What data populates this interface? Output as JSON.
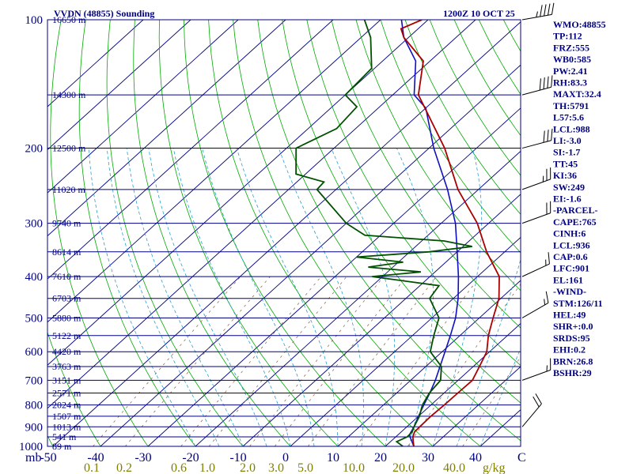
{
  "header": {
    "title": "VVDN (48855) Sounding",
    "time": "1200Z 10 OCT 25"
  },
  "colors": {
    "isobar": "#000080",
    "isotherm": "#000080",
    "dry_adiabat": "#00aa00",
    "moist_adiabat": "#2aa0d0",
    "mixing_ratio": "#806040",
    "temperature": "#aa0000",
    "dewpoint": "#005000",
    "parcel": "#1010c0",
    "text": "#000080",
    "mixing_label": "#808000"
  },
  "chart_data": {
    "type": "line",
    "title": "VVDN (48855) Sounding",
    "subtitle": "1200Z 10 OCT 25",
    "y_axis": {
      "label": "mb",
      "scale": "log",
      "range": [
        1000,
        100
      ],
      "ticks": [
        "100",
        "200",
        "300",
        "400",
        "500",
        "600",
        "700",
        "800",
        "900",
        "1000"
      ]
    },
    "x_axis": {
      "label": "C",
      "range": [
        -50,
        50
      ],
      "ticks": [
        "-50",
        "-40",
        "-30",
        "-20",
        "-10",
        "0",
        "10",
        "20",
        "30",
        "40"
      ]
    },
    "mixing_ratio_axis": {
      "label": "g/kg",
      "ticks": [
        "0.1",
        "0.2",
        "0.6",
        "1.0",
        "2.0",
        "3.0",
        "5.0",
        "10.0",
        "20.0",
        "40.0"
      ]
    },
    "height_labels": [
      {
        "p": 100,
        "label": "16650 m"
      },
      {
        "p": 150,
        "label": "14300 m"
      },
      {
        "p": 200,
        "label": "12500 m"
      },
      {
        "p": 250,
        "label": "11020 m"
      },
      {
        "p": 300,
        "label": "9740 m"
      },
      {
        "p": 350,
        "label": "8614 m"
      },
      {
        "p": 400,
        "label": "7610 m"
      },
      {
        "p": 450,
        "label": "6703 m"
      },
      {
        "p": 500,
        "label": "5880 m"
      },
      {
        "p": 550,
        "label": "5122 m"
      },
      {
        "p": 600,
        "label": "4420 m"
      },
      {
        "p": 650,
        "label": "3763 m"
      },
      {
        "p": 700,
        "label": "3151 m"
      },
      {
        "p": 750,
        "label": "2571 m"
      },
      {
        "p": 800,
        "label": "2024 m"
      },
      {
        "p": 850,
        "label": "1507 m"
      },
      {
        "p": 900,
        "label": "1013 m"
      },
      {
        "p": 950,
        "label": "541 m"
      },
      {
        "p": 1000,
        "label": "89 m"
      }
    ],
    "series": [
      {
        "key": "temperature",
        "points": [
          [
            1000,
            26.0
          ],
          [
            975,
            24.8
          ],
          [
            950,
            23.6
          ],
          [
            925,
            22.8
          ],
          [
            900,
            22.7
          ],
          [
            850,
            22.6
          ],
          [
            800,
            22.8
          ],
          [
            750,
            22.9
          ],
          [
            700,
            23.0
          ],
          [
            650,
            21.3
          ],
          [
            600,
            19.4
          ],
          [
            550,
            16.0
          ],
          [
            500,
            12.9
          ],
          [
            450,
            9.6
          ],
          [
            400,
            4.6
          ],
          [
            350,
            -3.8
          ],
          [
            300,
            -12.4
          ],
          [
            250,
            -24.3
          ],
          [
            200,
            -36.7
          ],
          [
            150,
            -54.6
          ],
          [
            125,
            -61.4
          ],
          [
            110,
            -71.0
          ],
          [
            105,
            -73.6
          ],
          [
            100,
            -71.3
          ]
        ]
      },
      {
        "key": "dewpoint",
        "points": [
          [
            1000,
            23.7
          ],
          [
            975,
            21.3
          ],
          [
            950,
            22.4
          ],
          [
            925,
            22.3
          ],
          [
            900,
            21.5
          ],
          [
            850,
            20.2
          ],
          [
            800,
            18.2
          ],
          [
            750,
            16.9
          ],
          [
            700,
            16.3
          ],
          [
            650,
            13.3
          ],
          [
            600,
            7.5
          ],
          [
            550,
            4.5
          ],
          [
            500,
            1.5
          ],
          [
            450,
            -5.0
          ],
          [
            420,
            -6.0
          ],
          [
            400,
            -22.2
          ],
          [
            390,
            -13.0
          ],
          [
            380,
            -25.2
          ],
          [
            370,
            -19.0
          ],
          [
            360,
            -30.0
          ],
          [
            350,
            -16.0
          ],
          [
            340,
            -8.1
          ],
          [
            330,
            -15.3
          ],
          [
            320,
            -33.3
          ],
          [
            300,
            -40.0
          ],
          [
            250,
            -54.0
          ],
          [
            240,
            -54.3
          ],
          [
            230,
            -62.0
          ],
          [
            200,
            -68.0
          ],
          [
            180,
            -64.0
          ],
          [
            160,
            -64.8
          ],
          [
            150,
            -70.0
          ],
          [
            130,
            -70.6
          ],
          [
            110,
            -78.0
          ],
          [
            100,
            -83.4
          ]
        ]
      },
      {
        "key": "parcel",
        "points": [
          [
            1000,
            26.0
          ],
          [
            950,
            23.0
          ],
          [
            936,
            22.3
          ],
          [
            900,
            21.5
          ],
          [
            850,
            20.0
          ],
          [
            800,
            18.5
          ],
          [
            750,
            17.0
          ],
          [
            700,
            15.2
          ],
          [
            650,
            13.0
          ],
          [
            600,
            10.6
          ],
          [
            550,
            8.0
          ],
          [
            500,
            5.0
          ],
          [
            450,
            1.0
          ],
          [
            400,
            -4.0
          ],
          [
            350,
            -10.0
          ],
          [
            300,
            -17.0
          ],
          [
            250,
            -26.5
          ],
          [
            200,
            -39.0
          ],
          [
            161,
            -50.0
          ],
          [
            150,
            -55.5
          ],
          [
            125,
            -63.0
          ],
          [
            110,
            -71.0
          ],
          [
            100,
            -75.6
          ]
        ]
      }
    ],
    "winds": [
      {
        "p": 100,
        "dir": 260,
        "spd": 45
      },
      {
        "p": 150,
        "dir": 255,
        "spd": 40
      },
      {
        "p": 200,
        "dir": 255,
        "spd": 30
      },
      {
        "p": 250,
        "dir": 250,
        "spd": 25
      },
      {
        "p": 300,
        "dir": 250,
        "spd": 20
      },
      {
        "p": 400,
        "dir": 245,
        "spd": 15
      },
      {
        "p": 500,
        "dir": 240,
        "spd": 15
      },
      {
        "p": 700,
        "dir": 250,
        "spd": 15
      },
      {
        "p": 900,
        "dir": 220,
        "spd": 20
      }
    ]
  },
  "indices": [
    "WMO:48855",
    "TP:112",
    "FRZ:555",
    "WB0:585",
    "PW:2.41",
    "RH:83.3",
    "MAXT:32.4",
    "TH:5791",
    "L57:5.6",
    "LCL:988",
    "LI:-3.0",
    "SI:-1.7",
    "TT:45",
    "KI:36",
    "SW:249",
    "EI:-1.6",
    "-PARCEL-",
    "CAPE:765",
    "CINH:6",
    "LCL:936",
    "CAP:0.6",
    "LFC:901",
    "EL:161",
    "-WIND-",
    "STM:126/11",
    "HEL:49",
    "SHR+:0.0",
    "SRDS:95",
    "EHI:0.2",
    "BRN:26.8",
    "BSHR:29"
  ]
}
